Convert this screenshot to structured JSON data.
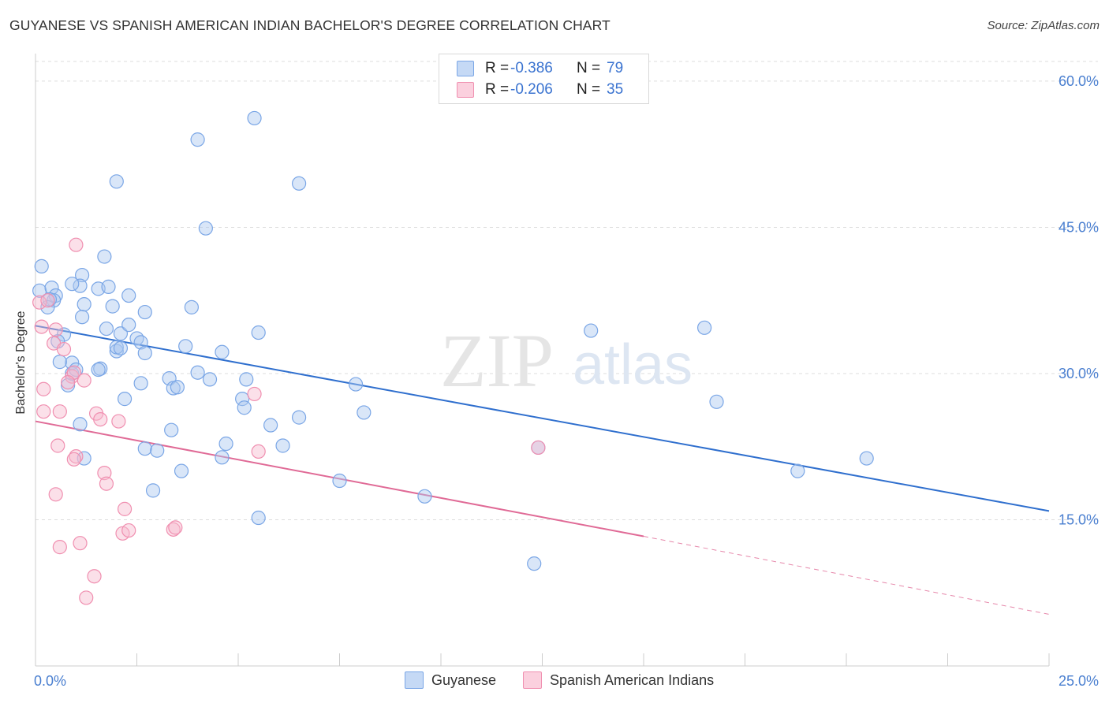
{
  "header": {
    "title": "GUYANESE VS SPANISH AMERICAN INDIAN BACHELOR'S DEGREE CORRELATION CHART",
    "source": "Source: ZipAtlas.com"
  },
  "watermark": {
    "zip": "ZIP",
    "atlas": "atlas"
  },
  "legend": {
    "rows": [
      {
        "r_label": "R =",
        "r_value": "-0.386",
        "n_label": "N =",
        "n_value": "79",
        "color": "#7aa6e6"
      },
      {
        "r_label": "R =",
        "r_value": "-0.206",
        "n_label": "N =",
        "n_value": "35",
        "color": "#f08fb0"
      }
    ]
  },
  "bottom_legend": {
    "series1": "Guyanese",
    "series2": "Spanish American Indians"
  },
  "chart_data": {
    "type": "scatter",
    "title": "GUYANESE VS SPANISH AMERICAN INDIAN BACHELOR'S DEGREE CORRELATION CHART",
    "xlabel": "",
    "ylabel": "Bachelor's Degree",
    "xlim": [
      0,
      25
    ],
    "ylim": [
      0,
      62.5
    ],
    "x_ticks": [
      "0.0%",
      "25.0%"
    ],
    "y_ticks": [
      {
        "value": 15,
        "label": "15.0%"
      },
      {
        "value": 30,
        "label": "30.0%"
      },
      {
        "value": 45,
        "label": "45.0%"
      },
      {
        "value": 60,
        "label": "60.0%"
      }
    ],
    "grid": true,
    "legend_position": "top-center",
    "colors": {
      "guyanese": "#7aa6e6",
      "guyanese_line": "#2f6fce",
      "spanish": "#f08fb0",
      "spanish_line": "#e06a96"
    },
    "series": [
      {
        "name": "Guyanese",
        "points": [
          [
            0.15,
            41.0
          ],
          [
            0.1,
            38.5
          ],
          [
            0.4,
            38.8
          ],
          [
            0.5,
            38.0
          ],
          [
            0.45,
            37.5
          ],
          [
            0.3,
            36.8
          ],
          [
            0.35,
            37.6
          ],
          [
            0.7,
            34.0
          ],
          [
            0.8,
            28.8
          ],
          [
            0.9,
            31.1
          ],
          [
            0.6,
            31.2
          ],
          [
            0.9,
            30.0
          ],
          [
            1.0,
            30.4
          ],
          [
            1.1,
            24.8
          ],
          [
            1.2,
            21.3
          ],
          [
            1.15,
            40.1
          ],
          [
            1.1,
            39.0
          ],
          [
            1.2,
            37.1
          ],
          [
            1.15,
            35.8
          ],
          [
            0.9,
            39.2
          ],
          [
            1.7,
            42.0
          ],
          [
            1.55,
            38.7
          ],
          [
            1.8,
            38.9
          ],
          [
            1.6,
            30.5
          ],
          [
            1.9,
            36.9
          ],
          [
            1.75,
            34.6
          ],
          [
            2.0,
            32.3
          ],
          [
            2.0,
            32.7
          ],
          [
            2.1,
            34.1
          ],
          [
            2.1,
            32.6
          ],
          [
            2.2,
            27.4
          ],
          [
            2.3,
            38.0
          ],
          [
            2.3,
            35.0
          ],
          [
            2.5,
            33.6
          ],
          [
            2.6,
            33.2
          ],
          [
            2.7,
            32.1
          ],
          [
            2.7,
            36.3
          ],
          [
            2.6,
            29.0
          ],
          [
            2.7,
            22.3
          ],
          [
            3.0,
            22.1
          ],
          [
            2.9,
            18.0
          ],
          [
            3.3,
            29.5
          ],
          [
            3.35,
            24.2
          ],
          [
            3.4,
            28.5
          ],
          [
            3.5,
            28.6
          ],
          [
            3.7,
            32.8
          ],
          [
            3.85,
            36.8
          ],
          [
            3.6,
            20.0
          ],
          [
            4.0,
            30.1
          ],
          [
            4.3,
            29.4
          ],
          [
            4.6,
            32.2
          ],
          [
            4.7,
            22.8
          ],
          [
            4.6,
            21.4
          ],
          [
            5.1,
            27.4
          ],
          [
            5.15,
            26.5
          ],
          [
            5.2,
            29.4
          ],
          [
            5.5,
            34.2
          ],
          [
            5.5,
            15.2
          ],
          [
            5.8,
            24.7
          ],
          [
            6.1,
            22.6
          ],
          [
            6.5,
            25.5
          ],
          [
            7.5,
            19.0
          ],
          [
            7.9,
            28.9
          ],
          [
            8.1,
            26.0
          ],
          [
            9.6,
            17.4
          ],
          [
            12.3,
            10.5
          ],
          [
            12.4,
            22.4
          ],
          [
            13.7,
            34.4
          ],
          [
            16.5,
            34.7
          ],
          [
            16.8,
            27.1
          ],
          [
            18.8,
            20.0
          ],
          [
            20.5,
            21.3
          ],
          [
            2.0,
            49.7
          ],
          [
            4.0,
            54.0
          ],
          [
            4.2,
            44.9
          ],
          [
            5.4,
            56.2
          ],
          [
            6.5,
            49.5
          ],
          [
            1.55,
            30.4
          ],
          [
            0.55,
            33.3
          ]
        ],
        "trend": {
          "x": [
            0,
            25
          ],
          "y": [
            34.9,
            15.9
          ]
        }
      },
      {
        "name": "Spanish American Indians",
        "points": [
          [
            0.1,
            37.3
          ],
          [
            0.15,
            34.8
          ],
          [
            0.3,
            37.5
          ],
          [
            0.45,
            33.1
          ],
          [
            0.5,
            34.5
          ],
          [
            0.7,
            32.5
          ],
          [
            0.2,
            28.4
          ],
          [
            0.2,
            26.1
          ],
          [
            0.6,
            26.1
          ],
          [
            0.9,
            29.7
          ],
          [
            0.95,
            30.1
          ],
          [
            1.2,
            29.3
          ],
          [
            0.8,
            29.1
          ],
          [
            1.0,
            21.5
          ],
          [
            0.95,
            21.2
          ],
          [
            0.55,
            22.6
          ],
          [
            1.5,
            25.9
          ],
          [
            1.6,
            25.3
          ],
          [
            2.05,
            25.1
          ],
          [
            1.7,
            19.8
          ],
          [
            1.75,
            18.7
          ],
          [
            2.2,
            16.1
          ],
          [
            2.15,
            13.6
          ],
          [
            2.3,
            13.9
          ],
          [
            0.5,
            17.6
          ],
          [
            3.4,
            14.0
          ],
          [
            3.45,
            14.2
          ],
          [
            0.6,
            12.2
          ],
          [
            1.1,
            12.6
          ],
          [
            1.45,
            9.2
          ],
          [
            1.25,
            7.0
          ],
          [
            1.0,
            43.2
          ],
          [
            5.4,
            27.9
          ],
          [
            5.5,
            22.0
          ],
          [
            12.4,
            22.4
          ]
        ],
        "trend": {
          "x": [
            0,
            15
          ],
          "y": [
            25.1,
            13.3
          ]
        },
        "trend_dashed": {
          "x": [
            15,
            25
          ],
          "y": [
            13.3,
            5.3
          ]
        }
      }
    ]
  }
}
